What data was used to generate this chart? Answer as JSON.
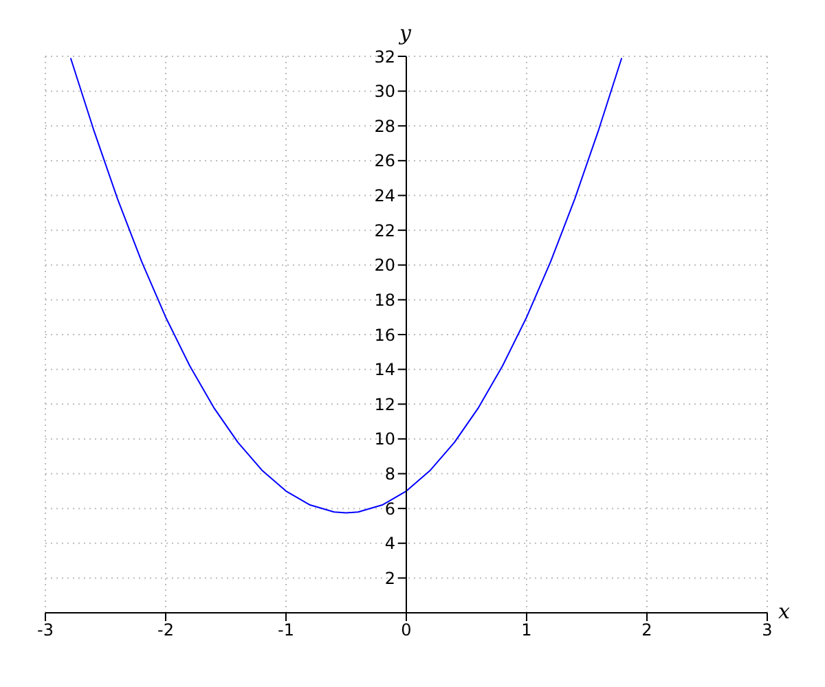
{
  "chart_data": {
    "type": "line",
    "xlabel": "x",
    "ylabel": "y",
    "x": [
      -2.79,
      -2.6,
      -2.4,
      -2.2,
      -2,
      -1.8,
      -1.6,
      -1.4,
      -1.2,
      -1,
      -0.8,
      -0.6,
      -0.5,
      -0.4,
      -0.2,
      0,
      0.2,
      0.4,
      0.6,
      0.8,
      1,
      1.2,
      1.4,
      1.6,
      1.79
    ],
    "series": [
      {
        "color": "#0000ff",
        "values": [
          31.9,
          27.8,
          23.8,
          20.2,
          17,
          14.2,
          11.8,
          9.8,
          8.2,
          7,
          6.2,
          5.8,
          5.75,
          5.8,
          6.2,
          7,
          8.2,
          9.8,
          11.8,
          14.2,
          17,
          20.2,
          23.8,
          27.8,
          31.9
        ]
      }
    ],
    "xlim": [
      -3,
      3
    ],
    "ylim": [
      0,
      32
    ],
    "xticks": [
      -3,
      -2,
      -1,
      0,
      1,
      2,
      3
    ],
    "yticks": [
      2,
      4,
      6,
      8,
      10,
      12,
      14,
      16,
      18,
      20,
      22,
      24,
      26,
      28,
      30,
      32
    ],
    "grid": true,
    "marker": "none",
    "line_style": "solid",
    "legend": false
  }
}
